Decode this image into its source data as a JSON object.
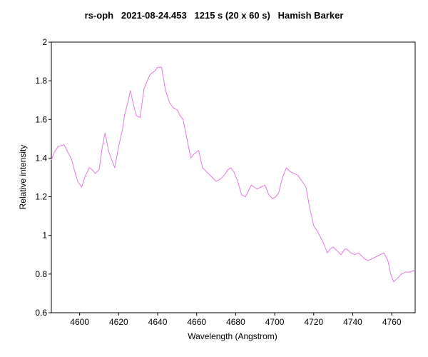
{
  "chart_data": {
    "type": "line",
    "title": "rs-oph   2021-08-24.453   1215 s (20 x 60 s)   Hamish Barker",
    "xlabel": "Wavelength (Angstrom)",
    "ylabel": "Relative intensity",
    "xlim": [
      4585.5,
      4772
    ],
    "ylim": [
      0.6,
      2.0
    ],
    "xticks": [
      4600,
      4620,
      4640,
      4660,
      4680,
      4700,
      4720,
      4740,
      4760
    ],
    "yticks": [
      0.6,
      0.8,
      1,
      1.2,
      1.4,
      1.6,
      1.8,
      2
    ],
    "grid": false,
    "line_color": "#e07ae0",
    "series": [
      {
        "x": [
          4585.5,
          4587,
          4589,
          4592,
          4594,
          4596,
          4597.5,
          4599,
          4601,
          4603,
          4605,
          4606.5,
          4608,
          4610,
          4611.5,
          4613,
          4615,
          4618,
          4620,
          4622,
          4623,
          4625,
          4626,
          4627.5,
          4629,
          4631,
          4633,
          4636,
          4637,
          4638.5,
          4640,
          4642,
          4644,
          4646,
          4648,
          4650,
          4651.5,
          4653,
          4655,
          4657,
          4658.5,
          4661,
          4663,
          4665,
          4668,
          4670,
          4672,
          4674,
          4676,
          4677.5,
          4679,
          4681,
          4683,
          4685,
          4686.5,
          4688,
          4689.5,
          4691,
          4693,
          4695,
          4697,
          4699,
          4700.5,
          4702,
          4704,
          4706,
          4708,
          4710,
          4712,
          4714,
          4716,
          4718,
          4720,
          4722,
          4725,
          4727,
          4728.5,
          4730,
          4732,
          4734,
          4736,
          4737,
          4739,
          4741,
          4743,
          4744,
          4746,
          4748,
          4750,
          4752,
          4754,
          4756,
          4758,
          4759.5,
          4761,
          4763,
          4765,
          4767,
          4769,
          4772
        ],
        "y": [
          1.39,
          1.43,
          1.46,
          1.47,
          1.43,
          1.39,
          1.33,
          1.28,
          1.25,
          1.31,
          1.35,
          1.34,
          1.32,
          1.34,
          1.45,
          1.53,
          1.43,
          1.35,
          1.46,
          1.55,
          1.62,
          1.7,
          1.75,
          1.68,
          1.62,
          1.61,
          1.76,
          1.83,
          1.84,
          1.85,
          1.87,
          1.87,
          1.75,
          1.69,
          1.66,
          1.65,
          1.62,
          1.6,
          1.5,
          1.4,
          1.42,
          1.44,
          1.35,
          1.33,
          1.3,
          1.28,
          1.29,
          1.31,
          1.34,
          1.35,
          1.33,
          1.28,
          1.21,
          1.2,
          1.23,
          1.26,
          1.25,
          1.24,
          1.25,
          1.26,
          1.21,
          1.19,
          1.2,
          1.22,
          1.3,
          1.35,
          1.33,
          1.32,
          1.31,
          1.28,
          1.25,
          1.14,
          1.05,
          1.02,
          0.96,
          0.91,
          0.93,
          0.94,
          0.92,
          0.9,
          0.93,
          0.93,
          0.91,
          0.9,
          0.91,
          0.9,
          0.88,
          0.87,
          0.88,
          0.89,
          0.9,
          0.91,
          0.87,
          0.8,
          0.76,
          0.78,
          0.8,
          0.81,
          0.81,
          0.82
        ]
      }
    ]
  }
}
